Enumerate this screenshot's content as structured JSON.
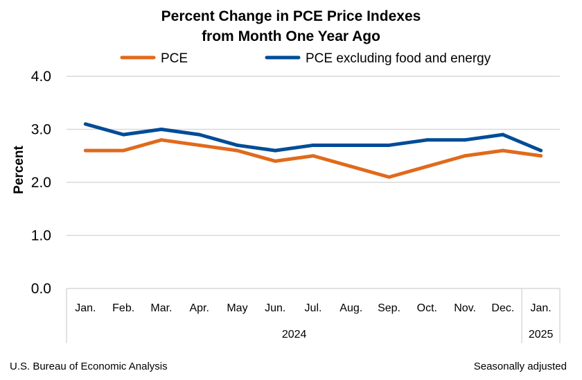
{
  "chart_data": {
    "type": "line",
    "title": "Percent Change in PCE Price Indexes",
    "subtitle": "from Month One Year Ago",
    "ylabel": "Percent",
    "xlabel": "",
    "ylim": [
      0,
      4
    ],
    "yticks": [
      "0.0",
      "1.0",
      "2.0",
      "3.0",
      "4.0"
    ],
    "categories": [
      "Jan.",
      "Feb.",
      "Mar.",
      "Apr.",
      "May",
      "Jun.",
      "Jul.",
      "Aug.",
      "Sep.",
      "Oct.",
      "Nov.",
      "Dec.",
      "Jan."
    ],
    "year_groups": [
      {
        "label": "2024",
        "count": 12
      },
      {
        "label": "2025",
        "count": 1
      }
    ],
    "grid": true,
    "legend_position": "top",
    "series": [
      {
        "name": "PCE",
        "color": "#E06A1C",
        "values": [
          2.6,
          2.6,
          2.8,
          2.7,
          2.6,
          2.4,
          2.5,
          2.3,
          2.1,
          2.3,
          2.5,
          2.6,
          2.5
        ]
      },
      {
        "name": "PCE excluding food and energy",
        "color": "#004C97",
        "values": [
          3.1,
          2.9,
          3.0,
          2.9,
          2.7,
          2.6,
          2.7,
          2.7,
          2.7,
          2.8,
          2.8,
          2.9,
          2.6
        ]
      }
    ]
  },
  "footer": {
    "source": "U.S. Bureau of Economic Analysis",
    "note": "Seasonally adjusted"
  }
}
